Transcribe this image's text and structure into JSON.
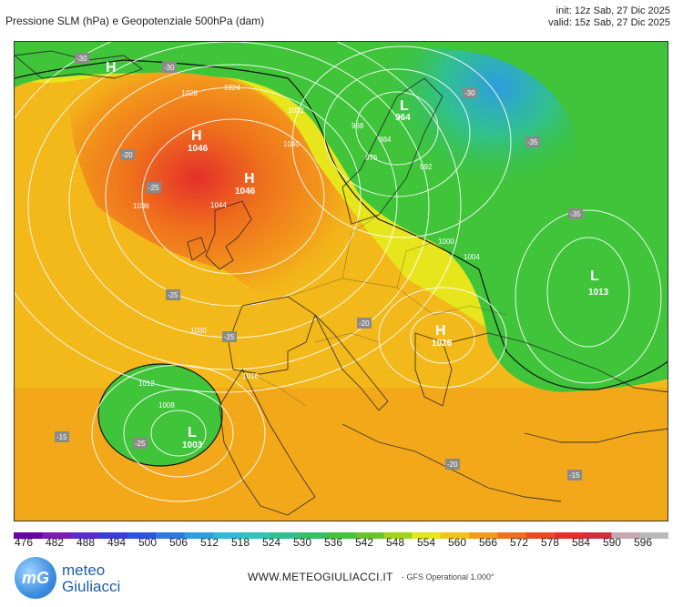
{
  "header": {
    "title": "Pressione SLM (hPa) e Geopotenziale 500hPa (dam)",
    "init": "init: 12z Sab, 27 Dic 2025",
    "valid": "valid: 15z Sab, 27 Dic 2025"
  },
  "map": {
    "pressure_centers": [
      {
        "type": "H",
        "value": "1046"
      },
      {
        "type": "H",
        "value": "1046"
      },
      {
        "type": "H",
        "value": ""
      },
      {
        "type": "L",
        "value": "964"
      },
      {
        "type": "L",
        "value": "1003"
      },
      {
        "type": "H",
        "value": "1026"
      },
      {
        "type": "L",
        "value": "1013"
      }
    ],
    "isobar_labels": [
      "1028",
      "1024",
      "1032",
      "1036",
      "1040",
      "1020",
      "1016",
      "1012",
      "1008",
      "1004",
      "1000",
      "992",
      "984",
      "976",
      "968",
      "1044"
    ],
    "temperature_labels": [
      "-30",
      "-30",
      "-30",
      "-25",
      "-25",
      "-20",
      "-20",
      "-15",
      "-15",
      "-35",
      "-35",
      "-20",
      "-25",
      "-25"
    ]
  },
  "colorbar": {
    "ticks": [
      "476",
      "482",
      "488",
      "494",
      "500",
      "506",
      "512",
      "518",
      "524",
      "530",
      "536",
      "542",
      "548",
      "554",
      "560",
      "566",
      "572",
      "578",
      "584",
      "590",
      "596"
    ],
    "colors": [
      "#6a00a8",
      "#7a1bb5",
      "#5a2bd0",
      "#3b3bd8",
      "#2a55e0",
      "#2b7ae0",
      "#2e9de0",
      "#2fb8d8",
      "#2fc4b8",
      "#30c090",
      "#33bf63",
      "#3fc43a",
      "#69c52b",
      "#a4d31d",
      "#e7e51b",
      "#f3c21a",
      "#f39a1b",
      "#ef6f1c",
      "#e94b1e",
      "#e42f2a",
      "#cf2f3f",
      "#c7a7b0",
      "#b9b9b9"
    ]
  },
  "footer": {
    "logo_line1": "meteo",
    "logo_line2": "Giuliacci",
    "logo_mark": "mG",
    "url": "WWW.METEOGIULIACCI.IT",
    "model": "- GFS Operational 1.000°"
  }
}
